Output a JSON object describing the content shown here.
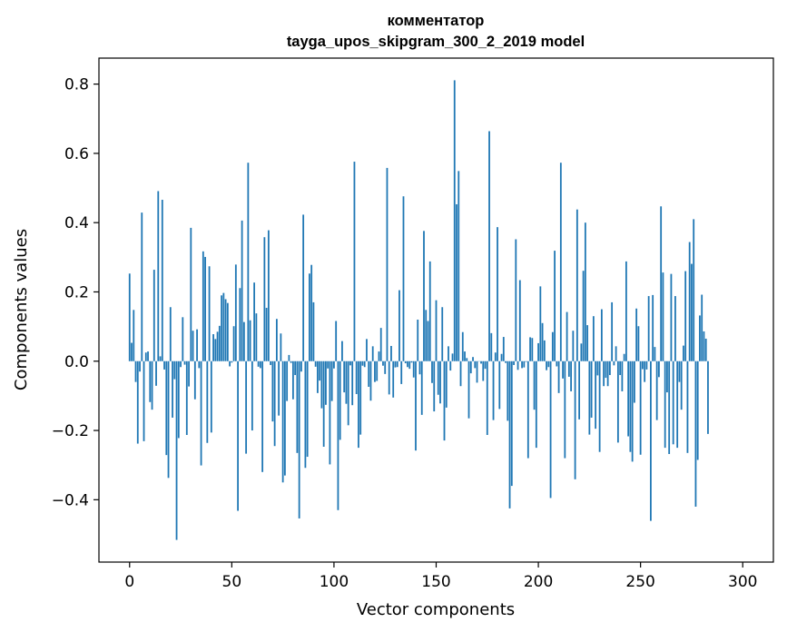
{
  "chart_data": {
    "type": "bar",
    "title": "комментатор",
    "subtitle": "tayga_upos_skipgram_300_2_2019 model",
    "xlabel": "Vector components",
    "ylabel": "Components values",
    "xlim": [
      -15,
      315
    ],
    "ylim": [
      -0.58,
      0.875
    ],
    "xticks": [
      0,
      50,
      100,
      150,
      200,
      250,
      300
    ],
    "xtick_labels": [
      "0",
      "50",
      "100",
      "150",
      "200",
      "250",
      "300"
    ],
    "yticks": [
      -0.4,
      -0.2,
      0.0,
      0.2,
      0.4,
      0.6,
      0.8
    ],
    "ytick_labels": [
      "−0.4",
      "−0.2",
      "0.0",
      "0.2",
      "0.4",
      "0.6",
      "0.8"
    ],
    "bar_color": "#1f77b4",
    "grid": false,
    "legend": "none",
    "series": [
      {
        "values": [
          0.253,
          0.053,
          0.148,
          -0.06,
          -0.238,
          -0.03,
          0.429,
          -0.231,
          0.025,
          0.028,
          -0.118,
          -0.14,
          0.264,
          -0.071,
          0.491,
          0.014,
          0.466,
          -0.024,
          -0.271,
          -0.337,
          0.156,
          -0.163,
          -0.052,
          -0.516,
          -0.222,
          -0.017,
          0.127,
          -0.01,
          -0.213,
          -0.073,
          0.385,
          0.088,
          -0.11,
          0.092,
          -0.02,
          -0.301,
          0.317,
          0.301,
          -0.236,
          0.274,
          -0.206,
          0.078,
          0.064,
          0.085,
          0.102,
          0.19,
          0.197,
          0.179,
          0.168,
          -0.015,
          -0.004,
          0.101,
          0.279,
          -0.432,
          0.211,
          0.406,
          0.113,
          -0.267,
          0.573,
          0.118,
          -0.2,
          0.227,
          0.138,
          -0.016,
          -0.02,
          -0.32,
          0.358,
          0.154,
          0.378,
          -0.011,
          -0.174,
          -0.245,
          0.122,
          -0.157,
          0.08,
          -0.35,
          -0.33,
          -0.115,
          0.018,
          -0.005,
          -0.11,
          -0.04,
          -0.265,
          -0.454,
          -0.03,
          0.423,
          -0.308,
          -0.276,
          0.253,
          0.278,
          0.17,
          -0.016,
          -0.092,
          -0.056,
          -0.136,
          -0.247,
          -0.126,
          -0.021,
          -0.298,
          -0.115,
          -0.021,
          0.116,
          -0.43,
          -0.227,
          0.058,
          -0.09,
          -0.123,
          -0.185,
          -0.012,
          -0.127,
          0.576,
          -0.095,
          -0.25,
          -0.212,
          -0.013,
          -0.017,
          0.064,
          -0.074,
          -0.114,
          0.043,
          -0.06,
          -0.057,
          0.028,
          0.096,
          -0.013,
          -0.037,
          0.558,
          -0.096,
          0.044,
          -0.105,
          -0.018,
          -0.017,
          0.205,
          -0.066,
          0.476,
          -0.006,
          -0.017,
          -0.022,
          -0.004,
          -0.047,
          -0.258,
          0.12,
          -0.038,
          -0.155,
          0.376,
          0.148,
          0.116,
          0.288,
          -0.063,
          -0.145,
          0.176,
          -0.097,
          -0.122,
          0.156,
          -0.229,
          -0.134,
          0.043,
          -0.027,
          0.022,
          0.811,
          0.453,
          0.549,
          -0.072,
          0.084,
          0.028,
          0.009,
          -0.165,
          -0.035,
          0.012,
          -0.02,
          -0.062,
          -0.001,
          -0.007,
          -0.057,
          -0.022,
          -0.213,
          0.664,
          0.081,
          -0.17,
          0.025,
          0.387,
          -0.138,
          0.021,
          0.07,
          -0.005,
          -0.172,
          -0.425,
          -0.36,
          -0.011,
          0.352,
          -0.025,
          0.234,
          -0.02,
          -0.018,
          -0.002,
          -0.28,
          0.069,
          0.067,
          -0.14,
          -0.25,
          0.052,
          0.216,
          0.11,
          0.06,
          -0.026,
          -0.017,
          -0.395,
          0.084,
          0.319,
          -0.015,
          -0.092,
          0.573,
          -0.05,
          -0.28,
          0.142,
          -0.045,
          -0.087,
          0.088,
          -0.341,
          0.438,
          -0.168,
          0.051,
          0.261,
          0.4,
          0.104,
          -0.212,
          -0.163,
          0.13,
          -0.195,
          -0.041,
          -0.262,
          0.15,
          -0.072,
          -0.048,
          -0.072,
          -0.04,
          0.17,
          -0.012,
          0.043,
          -0.235,
          -0.04,
          -0.087,
          0.021,
          0.288,
          -0.217,
          -0.262,
          -0.29,
          -0.12,
          0.152,
          0.101,
          -0.27,
          -0.023,
          -0.06,
          -0.024,
          0.188,
          -0.461,
          0.191,
          0.041,
          -0.17,
          -0.046,
          0.447,
          0.256,
          -0.25,
          -0.09,
          -0.268,
          0.252,
          -0.24,
          0.188,
          -0.25,
          -0.06,
          -0.14,
          0.045,
          0.26,
          -0.265,
          0.344,
          0.281,
          0.41,
          -0.42,
          -0.285,
          0.132,
          0.192,
          0.086,
          0.065,
          -0.21
        ]
      }
    ]
  }
}
